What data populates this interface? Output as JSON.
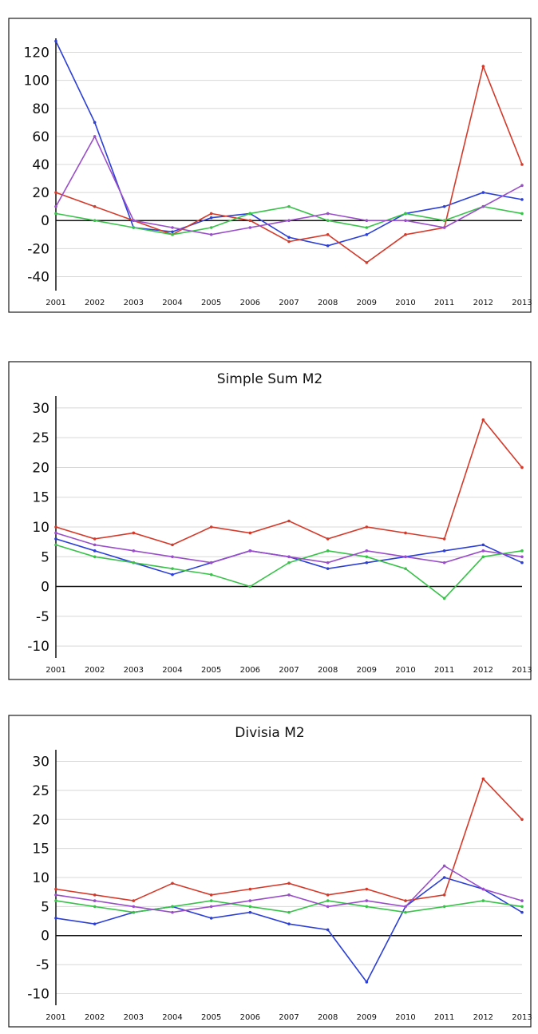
{
  "chart_data": [
    {
      "type": "line",
      "title": "",
      "x": [
        "2001",
        "2002",
        "2003",
        "2004",
        "2005",
        "2006",
        "2007",
        "2008",
        "2009",
        "2010",
        "2011",
        "2012",
        "2013"
      ],
      "yticks": [
        120,
        100,
        80,
        60,
        40,
        20,
        0,
        -20,
        -40
      ],
      "ylim": [
        -50,
        130
      ],
      "grid": false,
      "series": [
        {
          "name": "",
          "color": "#2b3fd6",
          "values": [
            128,
            70,
            -5,
            -8,
            2,
            5,
            -12,
            -18,
            -10,
            5,
            10,
            20,
            15
          ]
        },
        {
          "name": "",
          "color": "#d43a2a",
          "values": [
            20,
            10,
            0,
            -10,
            5,
            0,
            -15,
            -10,
            -30,
            -10,
            -5,
            110,
            40
          ]
        },
        {
          "name": "",
          "color": "#39c24a",
          "values": [
            5,
            0,
            -5,
            -10,
            -5,
            5,
            10,
            0,
            -5,
            5,
            0,
            10,
            5
          ]
        },
        {
          "name": "",
          "color": "#9a4dc9",
          "values": [
            10,
            60,
            0,
            -5,
            -10,
            -5,
            0,
            5,
            0,
            0,
            -5,
            10,
            25
          ]
        }
      ]
    },
    {
      "type": "line",
      "title": "Simple Sum M2",
      "x": [
        "2001",
        "2002",
        "2003",
        "2004",
        "2005",
        "2006",
        "2007",
        "2008",
        "2009",
        "2010",
        "2011",
        "2012",
        "2013"
      ],
      "yticks": [
        30,
        25,
        20,
        15,
        10,
        5,
        0,
        -5,
        -10
      ],
      "ylim": [
        -12,
        32
      ],
      "grid": false,
      "series": [
        {
          "name": "",
          "color": "#2b3fd6",
          "values": [
            8,
            6,
            4,
            2,
            4,
            6,
            5,
            3,
            4,
            5,
            6,
            7,
            4
          ]
        },
        {
          "name": "",
          "color": "#d43a2a",
          "values": [
            10,
            8,
            9,
            7,
            10,
            9,
            11,
            8,
            10,
            9,
            8,
            28,
            20
          ]
        },
        {
          "name": "",
          "color": "#39c24a",
          "values": [
            7,
            5,
            4,
            3,
            2,
            0,
            4,
            6,
            5,
            3,
            -2,
            5,
            6
          ]
        },
        {
          "name": "",
          "color": "#9a4dc9",
          "values": [
            9,
            7,
            6,
            5,
            4,
            6,
            5,
            4,
            6,
            5,
            4,
            6,
            5
          ]
        }
      ]
    },
    {
      "type": "line",
      "title": "Divisia M2",
      "x": [
        "2001",
        "2002",
        "2003",
        "2004",
        "2005",
        "2006",
        "2007",
        "2008",
        "2009",
        "2010",
        "2011",
        "2012",
        "2013"
      ],
      "yticks": [
        30,
        25,
        20,
        15,
        10,
        5,
        0,
        -5,
        -10
      ],
      "ylim": [
        -12,
        32
      ],
      "grid": false,
      "series": [
        {
          "name": "",
          "color": "#2b3fd6",
          "values": [
            3,
            2,
            4,
            5,
            3,
            4,
            2,
            1,
            -8,
            5,
            10,
            8,
            4
          ]
        },
        {
          "name": "",
          "color": "#d43a2a",
          "values": [
            8,
            7,
            6,
            9,
            7,
            8,
            9,
            7,
            8,
            6,
            7,
            27,
            20
          ]
        },
        {
          "name": "",
          "color": "#39c24a",
          "values": [
            6,
            5,
            4,
            5,
            6,
            5,
            4,
            6,
            5,
            4,
            5,
            6,
            5
          ]
        },
        {
          "name": "",
          "color": "#9a4dc9",
          "values": [
            7,
            6,
            5,
            4,
            5,
            6,
            7,
            5,
            6,
            5,
            12,
            8,
            6
          ]
        }
      ]
    }
  ]
}
